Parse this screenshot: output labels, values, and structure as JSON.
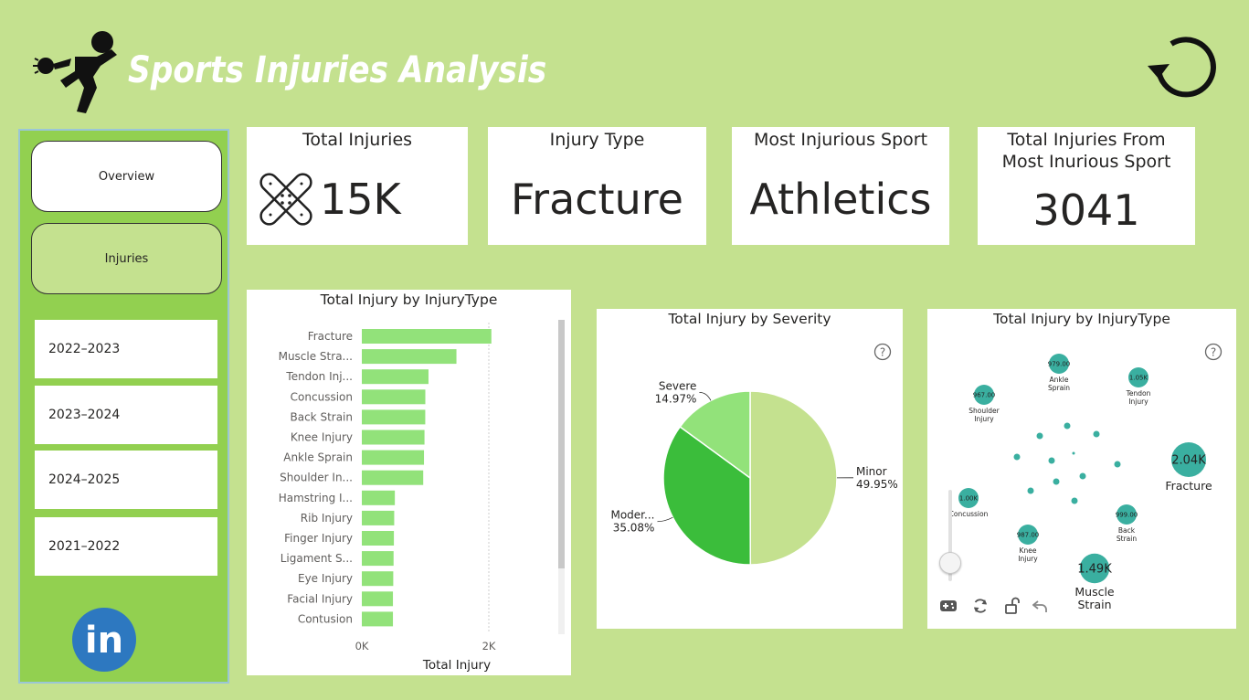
{
  "header": {
    "title": "Sports Injuries Analysis"
  },
  "sidebar": {
    "nav": [
      {
        "label": "Overview"
      },
      {
        "label": "Injuries"
      }
    ],
    "years": [
      {
        "label": "2022–2023"
      },
      {
        "label": "2023–2024"
      },
      {
        "label": "2024–2025"
      },
      {
        "label": "2021–2022"
      }
    ],
    "linkedin_text": "in"
  },
  "kpis": {
    "total_injuries": {
      "title": "Total Injuries",
      "value": "15K"
    },
    "injury_type": {
      "title": "Injury Type",
      "value": "Fracture"
    },
    "most_injurious_sport": {
      "title": "Most Injurious Sport",
      "value": "Athletics"
    },
    "total_from_sport": {
      "title": "Total Injuries From Most Inurious Sport",
      "value": "3041"
    }
  },
  "colors": {
    "background": "#c4e18f",
    "sidebar": "#92d050",
    "bar": "#92e27a",
    "pie_minor": "#c4e18f",
    "pie_moderate": "#3bbd3b",
    "pie_severe": "#92e27a",
    "bubble": "#3aafa0"
  },
  "chart_data": [
    {
      "type": "bar",
      "orientation": "horizontal",
      "title": "Total Injury by InjuryType",
      "xlabel": "Total Injury",
      "ylabel": "",
      "xticks": [
        "0K",
        "2K"
      ],
      "xlim": [
        0,
        2000
      ],
      "categories": [
        "Fracture",
        "Muscle Stra...",
        "Tendon Inj...",
        "Concussion",
        "Back Strain",
        "Knee Injury",
        "Ankle Sprain",
        "Shoulder In...",
        "Hamstring I...",
        "Rib Injury",
        "Finger Injury",
        "Ligament S...",
        "Eye Injury",
        "Facial Injury",
        "Contusion"
      ],
      "values": [
        2040,
        1490,
        1050,
        1000,
        999,
        987,
        979,
        967,
        520,
        510,
        505,
        500,
        495,
        490,
        490
      ]
    },
    {
      "type": "pie",
      "title": "Total Injury by Severity",
      "slices": [
        {
          "label": "Minor",
          "percent_label": "49.95%",
          "value": 49.95
        },
        {
          "label": "Moder...",
          "percent_label": "35.08%",
          "value": 35.08
        },
        {
          "label": "Severe",
          "percent_label": "14.97%",
          "value": 14.97
        }
      ]
    },
    {
      "type": "scatter",
      "subtype": "bubble",
      "title": "Total Injury by InjuryType",
      "bubbles": [
        {
          "label": "Fracture",
          "value_label": "2.04K",
          "value": 2040
        },
        {
          "label": "Muscle Strain",
          "value_label": "1.49K",
          "value": 1490
        },
        {
          "label": "Tendon Injury",
          "value_label": "1.05K",
          "value": 1050
        },
        {
          "label": "Concussion",
          "value_label": "1.00K",
          "value": 1000
        },
        {
          "label": "Back Strain",
          "value_label": "999.00",
          "value": 999
        },
        {
          "label": "Knee Injury",
          "value_label": "987.00",
          "value": 987
        },
        {
          "label": "Ankle Sprain",
          "value_label": "979.00",
          "value": 979
        },
        {
          "label": "Shoulder Injury",
          "value_label": "967.00",
          "value": 967
        }
      ],
      "zoom_level": 0.2
    }
  ]
}
